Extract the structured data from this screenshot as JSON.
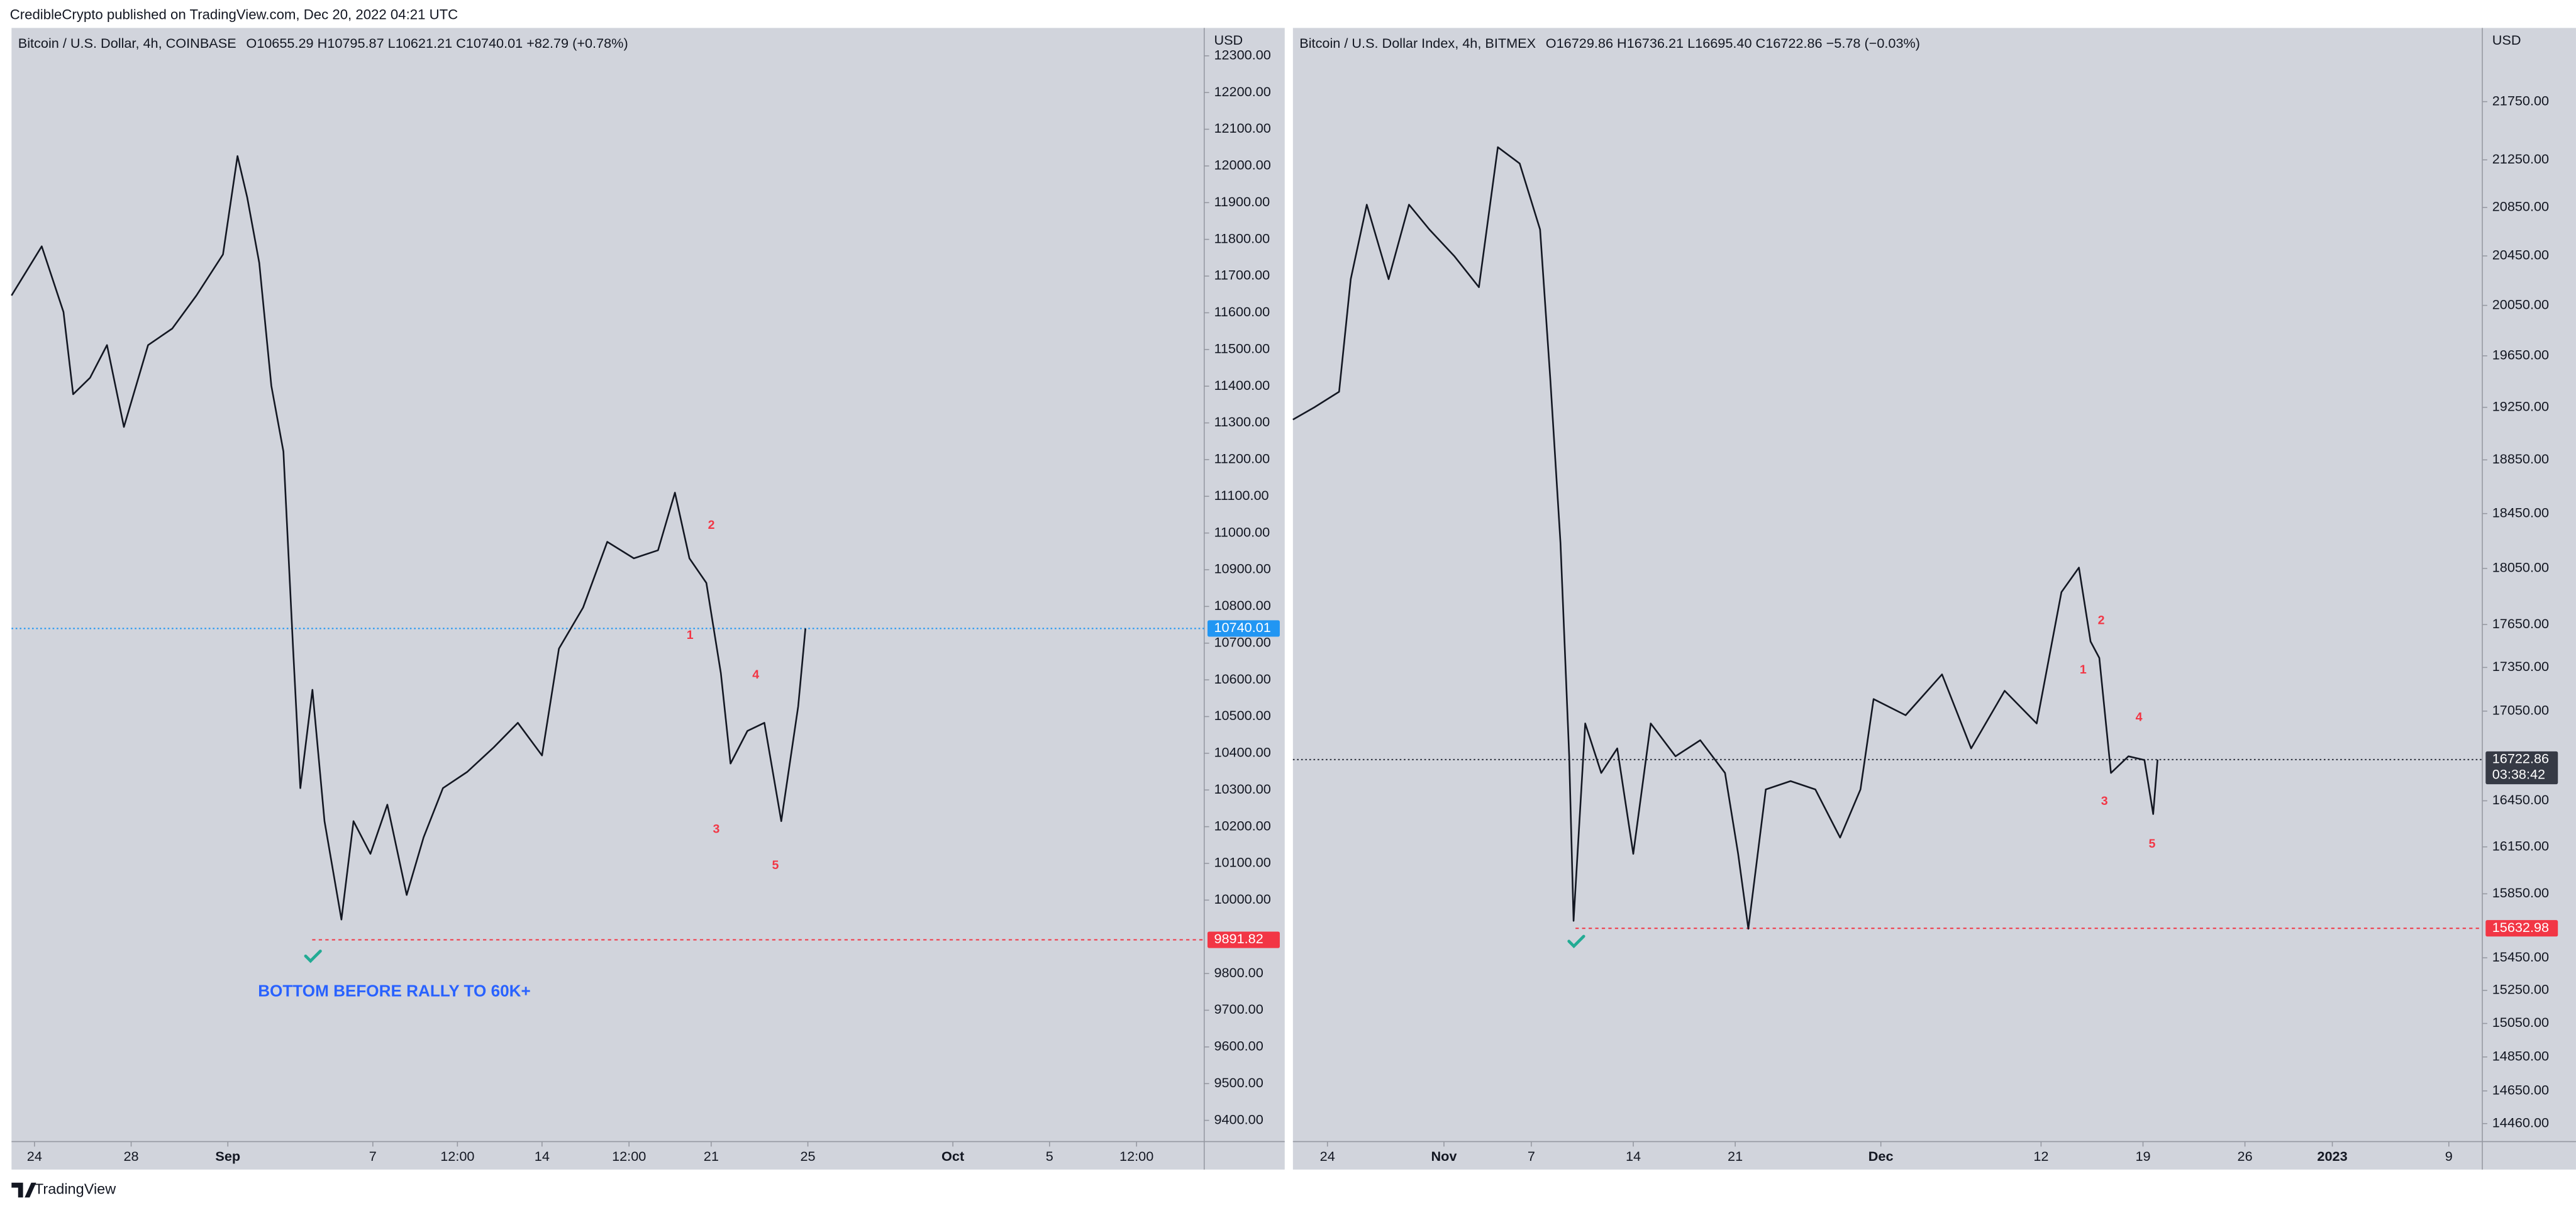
{
  "header": "CredibleCrypto published on TradingView.com, Dec 20, 2022 04:21 UTC",
  "footer": "TradingView",
  "chart_data": [
    {
      "type": "line",
      "title": "Bitcoin / U.S. Dollar, 4h, COINBASE",
      "ohlc": "O10655.29  H10795.87  L10621.21  C10740.01  +82.79 (+0.78%)",
      "axis_unit": "USD",
      "color": "#131722",
      "x": [
        -0.95,
        0.3,
        1.2,
        1.6,
        2.3,
        3,
        3.7,
        4.7,
        5.7,
        6.7,
        7.8,
        8.4,
        8.8,
        9.3,
        9.8,
        10.3,
        10.7,
        11,
        11.5,
        12,
        12.7,
        13.2,
        13.9,
        14.6,
        15.4,
        16.1,
        16.9,
        17.9,
        19,
        20,
        21,
        21.7,
        22.7,
        23.7,
        24.8,
        25.8,
        26.5,
        27.1,
        27.8,
        28.4,
        28.8,
        29.5,
        30.2,
        30.9,
        31.6,
        31.9
      ],
      "values": [
        11647,
        11781,
        11602,
        11378,
        11423,
        11512,
        11289,
        11512,
        11557,
        11647,
        11759,
        12027,
        11915,
        11736,
        11401,
        11222,
        10685,
        10305,
        10573,
        10215,
        9947,
        10215,
        10126,
        10260,
        10014,
        10171,
        10305,
        10349,
        10416,
        10483,
        10394,
        10685,
        10797,
        10976,
        10931,
        10953,
        11110,
        10931,
        10864,
        10618,
        10372,
        10461,
        10483,
        10215,
        10528,
        10740
      ],
      "xlim": [
        -0.95,
        48.4
      ],
      "xticks": [
        {
          "value": 0,
          "label": "24"
        },
        {
          "value": 4,
          "label": "28"
        },
        {
          "value": 8,
          "label": "Sep"
        },
        {
          "value": 14,
          "label": "7"
        },
        {
          "value": 17.5,
          "label": "12:00"
        },
        {
          "value": 21,
          "label": "14"
        },
        {
          "value": 24.6,
          "label": "12:00"
        },
        {
          "value": 28,
          "label": "21"
        },
        {
          "value": 32,
          "label": "25"
        },
        {
          "value": 38,
          "label": "Oct"
        },
        {
          "value": 42,
          "label": "5"
        },
        {
          "value": 45.6,
          "label": "12:00"
        }
      ],
      "ylim": [
        9342,
        12376
      ],
      "log_scale": false,
      "yticks": [
        {
          "value": 12300,
          "label": "12300.00"
        },
        {
          "value": 12200,
          "label": "12200.00"
        },
        {
          "value": 12100,
          "label": "12100.00"
        },
        {
          "value": 12000,
          "label": "12000.00"
        },
        {
          "value": 11900,
          "label": "11900.00"
        },
        {
          "value": 11800,
          "label": "11800.00"
        },
        {
          "value": 11700,
          "label": "11700.00"
        },
        {
          "value": 11600,
          "label": "11600.00"
        },
        {
          "value": 11500,
          "label": "11500.00"
        },
        {
          "value": 11400,
          "label": "11400.00"
        },
        {
          "value": 11300,
          "label": "11300.00"
        },
        {
          "value": 11200,
          "label": "11200.00"
        },
        {
          "value": 11100,
          "label": "11100.00"
        },
        {
          "value": 11000,
          "label": "11000.00"
        },
        {
          "value": 10900,
          "label": "10900.00"
        },
        {
          "value": 10800,
          "label": "10800.00"
        },
        {
          "value": 10700,
          "label": "10700.00"
        },
        {
          "value": 10600,
          "label": "10600.00"
        },
        {
          "value": 10500,
          "label": "10500.00"
        },
        {
          "value": 10400,
          "label": "10400.00"
        },
        {
          "value": 10300,
          "label": "10300.00"
        },
        {
          "value": 10200,
          "label": "10200.00"
        },
        {
          "value": 10100,
          "label": "10100.00"
        },
        {
          "value": 10000,
          "label": "10000.00"
        },
        {
          "value": 9800,
          "label": "9800.00"
        },
        {
          "value": 9700,
          "label": "9700.00"
        },
        {
          "value": 9600,
          "label": "9600.00"
        },
        {
          "value": 9500,
          "label": "9500.00"
        },
        {
          "value": 9400,
          "label": "9400.00"
        }
      ],
      "price_lines": [
        {
          "value": 10740.01,
          "color": "#2196f3",
          "style": "dotted"
        },
        {
          "value": 9891.82,
          "color": "#f23645",
          "style": "dashed"
        }
      ],
      "annotations": [
        "1",
        "2",
        "3",
        "4",
        "5",
        "BOTTOM BEFORE RALLY TO 60K+"
      ]
    },
    {
      "type": "line",
      "title": "Bitcoin / U.S. Dollar Index, 4h, BITMEX",
      "ohlc": "O16729.86  H16736.21  L16695.40  C16722.86  −5.78 (−0.03%)",
      "axis_unit": "USD",
      "color": "#131722",
      "x": [
        -2.37,
        -0.9,
        0.8,
        1.6,
        2.7,
        4.2,
        5.6,
        7,
        8.7,
        10.4,
        11.7,
        13.2,
        14.6,
        15.3,
        16,
        16.6,
        16.9,
        17.7,
        18.8,
        19.9,
        21,
        22.2,
        23.9,
        25.6,
        27.3,
        28.2,
        28.9,
        30.1,
        31.8,
        33.5,
        35.2,
        36.6,
        37.5,
        39.7,
        42.2,
        44.2,
        46.5,
        48.7,
        50.4,
        51.6,
        52.4,
        53,
        53.8,
        55,
        56.1,
        56.7,
        57
      ],
      "values": [
        19156,
        19250,
        19370,
        20261,
        20873,
        20261,
        20873,
        20667,
        20450,
        20196,
        21358,
        21219,
        20667,
        19473,
        18237,
        16745,
        15680,
        16966,
        16634,
        16798,
        16105,
        16966,
        16745,
        16853,
        16634,
        16105,
        15630,
        16525,
        16580,
        16525,
        16210,
        16525,
        17132,
        17022,
        17302,
        16798,
        17189,
        16966,
        17880,
        18056,
        17531,
        17416,
        16634,
        16745,
        16720,
        16363,
        16723
      ],
      "xlim": [
        -2.37,
        79.3
      ],
      "xticks": [
        {
          "value": 0,
          "label": "24"
        },
        {
          "value": 8,
          "label": "Nov"
        },
        {
          "value": 14,
          "label": "7"
        },
        {
          "value": 21,
          "label": "14"
        },
        {
          "value": 28,
          "label": "21"
        },
        {
          "value": 38,
          "label": "Dec"
        },
        {
          "value": 49,
          "label": "12"
        },
        {
          "value": 56,
          "label": "19"
        },
        {
          "value": 63,
          "label": "26"
        },
        {
          "value": 69,
          "label": "2023"
        },
        {
          "value": 77,
          "label": "9"
        }
      ],
      "ylim": [
        14356,
        22400
      ],
      "log_scale": true,
      "yticks": [
        {
          "value": 21750,
          "label": "21750.00"
        },
        {
          "value": 21250,
          "label": "21250.00"
        },
        {
          "value": 20850,
          "label": "20850.00"
        },
        {
          "value": 20450,
          "label": "20450.00"
        },
        {
          "value": 20050,
          "label": "20050.00"
        },
        {
          "value": 19650,
          "label": "19650.00"
        },
        {
          "value": 19250,
          "label": "19250.00"
        },
        {
          "value": 18850,
          "label": "18850.00"
        },
        {
          "value": 18450,
          "label": "18450.00"
        },
        {
          "value": 18050,
          "label": "18050.00"
        },
        {
          "value": 17650,
          "label": "17650.00"
        },
        {
          "value": 17350,
          "label": "17350.00"
        },
        {
          "value": 17050,
          "label": "17050.00"
        },
        {
          "value": 16450,
          "label": "16450.00"
        },
        {
          "value": 16150,
          "label": "16150.00"
        },
        {
          "value": 15850,
          "label": "15850.00"
        },
        {
          "value": 15450,
          "label": "15450.00"
        },
        {
          "value": 15250,
          "label": "15250.00"
        },
        {
          "value": 15050,
          "label": "15050.00"
        },
        {
          "value": 14850,
          "label": "14850.00"
        },
        {
          "value": 14650,
          "label": "14650.00"
        },
        {
          "value": 14460,
          "label": "14460.00"
        }
      ],
      "price_lines": [
        {
          "value": 16722.86,
          "color": "#363a45",
          "style": "dotted",
          "countdown": "03:38:42"
        },
        {
          "value": 15632.98,
          "color": "#f23645",
          "style": "dashed"
        }
      ],
      "annotations": [
        "1",
        "2",
        "3",
        "4",
        "5"
      ]
    }
  ]
}
